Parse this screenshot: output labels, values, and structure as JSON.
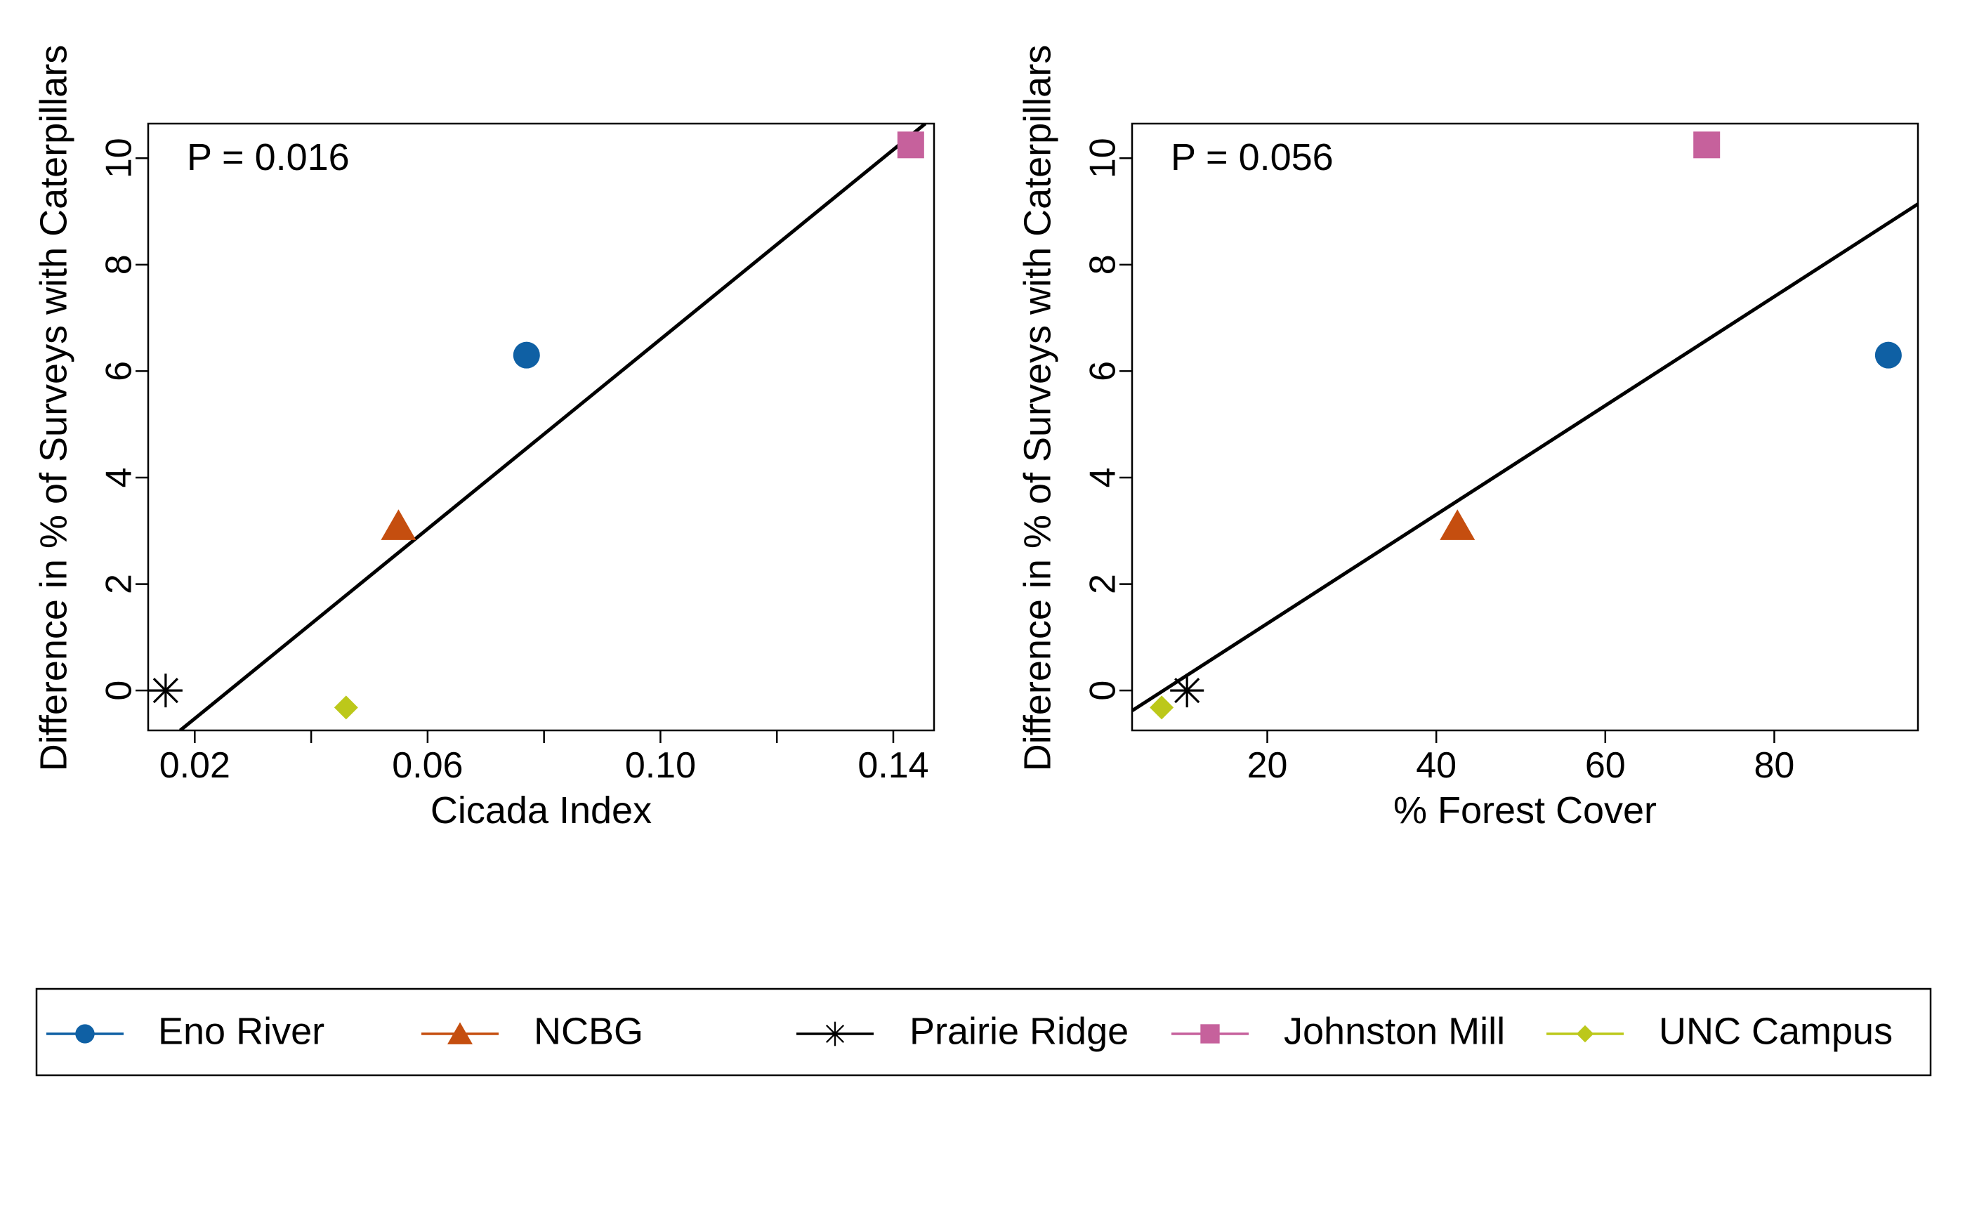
{
  "chart_data": [
    {
      "type": "scatter",
      "title": "",
      "annotation": "P = 0.016",
      "xlabel": "Cicada Index",
      "ylabel": "Difference in % of Surveys with Caterpillars",
      "xlim": [
        0.012,
        0.147
      ],
      "ylim": [
        -0.75,
        10.65
      ],
      "xticks": [
        0.02,
        0.04,
        0.06,
        0.08,
        0.1,
        0.12,
        0.14
      ],
      "xtick_labels": [
        "0.02",
        "",
        "0.06",
        "",
        "0.10",
        "",
        "0.14"
      ],
      "yticks": [
        0,
        2,
        4,
        6,
        8,
        10
      ],
      "ytick_labels": [
        "0",
        "2",
        "4",
        "6",
        "8",
        "10"
      ],
      "grid": false,
      "series": [
        {
          "name": "Eno River",
          "x": [
            0.077
          ],
          "y": [
            6.3
          ]
        },
        {
          "name": "NCBG",
          "x": [
            0.055
          ],
          "y": [
            3.1
          ]
        },
        {
          "name": "Prairie Ridge",
          "x": [
            0.015
          ],
          "y": [
            0.0
          ]
        },
        {
          "name": "Johnston Mill",
          "x": [
            0.143
          ],
          "y": [
            10.25
          ]
        },
        {
          "name": "UNC Campus",
          "x": [
            0.046
          ],
          "y": [
            -0.32
          ]
        }
      ],
      "fit_line": {
        "x": [
          0.0175,
          0.1455
        ],
        "y": [
          -0.75,
          10.65
        ]
      }
    },
    {
      "type": "scatter",
      "title": "",
      "annotation": "P = 0.056",
      "xlabel": "% Forest Cover",
      "ylabel": "Difference in % of Surveys with Caterpillars",
      "xlim": [
        4.0,
        97.0
      ],
      "ylim": [
        -0.75,
        10.65
      ],
      "xticks": [
        20,
        40,
        60,
        80
      ],
      "xtick_labels": [
        "20",
        "40",
        "60",
        "80"
      ],
      "yticks": [
        0,
        2,
        4,
        6,
        8,
        10
      ],
      "ytick_labels": [
        "0",
        "2",
        "4",
        "6",
        "8",
        "10"
      ],
      "grid": false,
      "series": [
        {
          "name": "Eno River",
          "x": [
            93.5
          ],
          "y": [
            6.3
          ]
        },
        {
          "name": "NCBG",
          "x": [
            42.5
          ],
          "y": [
            3.1
          ]
        },
        {
          "name": "Prairie Ridge",
          "x": [
            10.5
          ],
          "y": [
            0.0
          ]
        },
        {
          "name": "Johnston Mill",
          "x": [
            72.0
          ],
          "y": [
            10.25
          ]
        },
        {
          "name": "UNC Campus",
          "x": [
            7.5
          ],
          "y": [
            -0.32
          ]
        }
      ],
      "fit_line": {
        "x": [
          4.0,
          97.0
        ],
        "y": [
          -0.38,
          9.14
        ]
      }
    }
  ],
  "legend": {
    "position": "bottom",
    "items": [
      {
        "label": "Eno River",
        "color": "#0F60A4",
        "marker": "circle"
      },
      {
        "label": "NCBG",
        "color": "#C54E0F",
        "marker": "triangle"
      },
      {
        "label": "Prairie Ridge",
        "color": "#000000",
        "marker": "asterisk"
      },
      {
        "label": "Johnston Mill",
        "color": "#C6619C",
        "marker": "square"
      },
      {
        "label": "UNC Campus",
        "color": "#BCC81A",
        "marker": "diamond"
      }
    ]
  }
}
